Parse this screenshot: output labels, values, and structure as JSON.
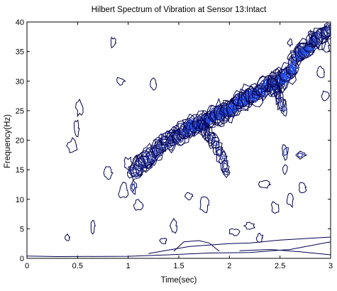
{
  "chart_data": {
    "type": "contour",
    "title": "Hilbert Spectrum of Vibration at Sensor 13:Intact",
    "xlabel": "Time(sec)",
    "ylabel": "Frequency(Hz)",
    "xlim": [
      0,
      3
    ],
    "ylim": [
      0,
      40
    ],
    "xticks": [
      0,
      0.5,
      1,
      1.5,
      2,
      2.5,
      3
    ],
    "xtick_labels": [
      "0",
      "0.5",
      "1",
      "1.5",
      "2",
      "2.5",
      "3"
    ],
    "yticks": [
      0,
      5,
      10,
      15,
      20,
      25,
      30,
      35,
      40
    ],
    "ytick_labels": [
      "0",
      "5",
      "10",
      "15",
      "20",
      "25",
      "30",
      "35",
      "40"
    ],
    "grid": false,
    "legend": "none",
    "colors": {
      "low": "#000050",
      "mid": "#2a3aa6",
      "high": "#1d55ff",
      "axis": "#000000"
    },
    "main_ridge": [
      {
        "t": 1.05,
        "f": 14.5
      },
      {
        "t": 1.2,
        "f": 17.0
      },
      {
        "t": 1.35,
        "f": 19.5
      },
      {
        "t": 1.5,
        "f": 21.0
      },
      {
        "t": 1.65,
        "f": 22.5
      },
      {
        "t": 1.8,
        "f": 23.5
      },
      {
        "t": 1.95,
        "f": 24.8
      },
      {
        "t": 2.1,
        "f": 26.5
      },
      {
        "t": 2.25,
        "f": 27.5
      },
      {
        "t": 2.4,
        "f": 29.5
      },
      {
        "t": 2.55,
        "f": 31.0
      },
      {
        "t": 2.7,
        "f": 34.5
      },
      {
        "t": 2.85,
        "f": 37.0
      },
      {
        "t": 3.0,
        "f": 39.0
      }
    ],
    "branches": [
      {
        "t": [
          1.72,
          1.86,
          1.94,
          1.98
        ],
        "f": [
          22.5,
          19.5,
          16.5,
          14.5
        ]
      },
      {
        "t": [
          2.42,
          2.48,
          2.55
        ],
        "f": [
          30.0,
          27.5,
          25.0
        ]
      }
    ],
    "islands": [
      {
        "t": 0.4,
        "f": 3.5,
        "level": "low"
      },
      {
        "t": 0.45,
        "f": 19.0,
        "level": "low"
      },
      {
        "t": 0.49,
        "f": 22.0,
        "level": "low"
      },
      {
        "t": 0.52,
        "f": 25.5,
        "level": "low"
      },
      {
        "t": 0.65,
        "f": 5.5,
        "level": "low"
      },
      {
        "t": 0.85,
        "f": 36.5,
        "level": "low"
      },
      {
        "t": 0.92,
        "f": 30.0,
        "level": "low"
      },
      {
        "t": 0.95,
        "f": 11.5,
        "level": "low"
      },
      {
        "t": 1.0,
        "f": 16.0,
        "level": "low"
      },
      {
        "t": 1.05,
        "f": 12.0,
        "level": "mid"
      },
      {
        "t": 1.1,
        "f": 9.0,
        "level": "low"
      },
      {
        "t": 1.35,
        "f": 3.0,
        "level": "low"
      },
      {
        "t": 1.45,
        "f": 5.5,
        "level": "low"
      },
      {
        "t": 1.6,
        "f": 10.5,
        "level": "low"
      },
      {
        "t": 1.75,
        "f": 9.0,
        "level": "low"
      },
      {
        "t": 1.97,
        "f": 14.5,
        "level": "mid"
      },
      {
        "t": 2.05,
        "f": 4.5,
        "level": "low"
      },
      {
        "t": 2.2,
        "f": 5.5,
        "level": "low"
      },
      {
        "t": 2.3,
        "f": 3.5,
        "level": "low"
      },
      {
        "t": 2.55,
        "f": 18.0,
        "level": "mid"
      },
      {
        "t": 2.55,
        "f": 15.0,
        "level": "low"
      },
      {
        "t": 2.6,
        "f": 10.0,
        "level": "low"
      },
      {
        "t": 2.6,
        "f": 36.5,
        "level": "low"
      },
      {
        "t": 2.7,
        "f": 17.5,
        "level": "mid"
      },
      {
        "t": 2.72,
        "f": 12.0,
        "level": "low"
      },
      {
        "t": 2.8,
        "f": 38.0,
        "level": "low"
      },
      {
        "t": 2.9,
        "f": 31.5,
        "level": "low"
      },
      {
        "t": 2.95,
        "f": 27.5,
        "level": "low"
      },
      {
        "t": 2.95,
        "f": 36.0,
        "level": "low"
      },
      {
        "t": 2.45,
        "f": 8.5,
        "level": "low"
      },
      {
        "t": 1.25,
        "f": 29.5,
        "level": "low"
      },
      {
        "t": 0.8,
        "f": 14.5,
        "level": "low"
      },
      {
        "t": 2.35,
        "f": 12.5,
        "level": "low"
      }
    ],
    "baseline_contours": [
      {
        "t": [
          0.0,
          0.3,
          1.0,
          1.4,
          1.8,
          2.2,
          2.6,
          3.0
        ],
        "f": [
          0.4,
          0.3,
          0.35,
          0.6,
          0.9,
          1.0,
          1.5,
          2.8
        ]
      },
      {
        "t": [
          1.2,
          1.4,
          1.6,
          1.75,
          2.0,
          2.2,
          2.5,
          3.0
        ],
        "f": [
          0.8,
          1.4,
          2.0,
          2.2,
          2.5,
          2.6,
          3.1,
          3.6
        ]
      },
      {
        "t": [
          1.45,
          1.55,
          1.7,
          1.8,
          1.9
        ],
        "f": [
          1.2,
          2.8,
          3.0,
          2.6,
          1.2
        ]
      },
      {
        "t": [
          2.1,
          2.4,
          2.7,
          3.0
        ],
        "f": [
          1.3,
          1.5,
          1.1,
          0.6
        ]
      }
    ]
  }
}
